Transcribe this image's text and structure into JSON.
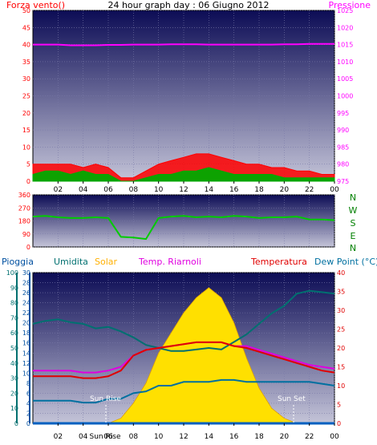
{
  "colors": {
    "wind": "#ff0000",
    "gust": "#00aa00",
    "pressure": "#ff00ff",
    "direction": "#00cc00",
    "rain": "#0060c0",
    "humidity": "#007070",
    "solar": "#ffe000",
    "heat_index": "#e000e0",
    "temperature": "#e00000",
    "dew_point": "#0070a0"
  },
  "header": {
    "title": "24 hour graph day : 06 Giugno 2012",
    "left_label": "Forza vento()",
    "right_label": "Pressione"
  },
  "bottom_header": {
    "rain": "Pioggia",
    "humidity": "Umidita",
    "solar": "Solar",
    "heat_index": "Temp. Riarnoli",
    "temperature": "Temperatura",
    "dew_point": "Dew Point (°C)"
  },
  "direction_labels": [
    "N",
    "W",
    "S",
    "E",
    "N"
  ],
  "annotations": {
    "sun_rise": "Sun Rise",
    "sun_set": "Sun Set",
    "sun_rise_axis": "Sun Rise"
  },
  "chart_data": [
    {
      "type": "line",
      "title": "24 hour graph day : 06 Giugno 2012",
      "x_ticks": [
        "02",
        "04",
        "06",
        "08",
        "10",
        "12",
        "14",
        "16",
        "18",
        "20",
        "22",
        "00"
      ],
      "y_left": {
        "label": "Forza vento()",
        "range": [
          0,
          50
        ],
        "ticks": [
          "0",
          "5",
          "10",
          "15",
          "20",
          "25",
          "30",
          "35",
          "40",
          "45",
          "50"
        ]
      },
      "y_right": {
        "label": "Pressione",
        "range": [
          975,
          1025
        ],
        "ticks": [
          "975",
          "980",
          "985",
          "990",
          "995",
          "1000",
          "1005",
          "1010",
          "1015",
          "1020",
          "1025"
        ]
      },
      "hours": [
        0,
        1,
        2,
        3,
        4,
        5,
        6,
        7,
        8,
        9,
        10,
        11,
        12,
        13,
        14,
        15,
        16,
        17,
        18,
        19,
        20,
        21,
        22,
        23,
        24
      ],
      "series": [
        {
          "key": "wind",
          "axis": "left",
          "values": [
            5,
            5,
            5,
            5,
            4,
            5,
            4,
            1,
            1,
            3,
            5,
            6,
            7,
            8,
            8,
            7,
            6,
            5,
            5,
            4,
            4,
            3,
            3,
            2,
            2
          ]
        },
        {
          "key": "gust",
          "axis": "left",
          "values": [
            2,
            3,
            3,
            2,
            3,
            2,
            2,
            0,
            0,
            1,
            2,
            2,
            3,
            3,
            4,
            3,
            2,
            2,
            2,
            2,
            1,
            1,
            1,
            1,
            1
          ]
        },
        {
          "key": "pressure",
          "axis": "right",
          "values": [
            1015,
            1015,
            1015,
            1014.8,
            1014.8,
            1014.8,
            1014.9,
            1014.9,
            1015,
            1015,
            1015,
            1015.1,
            1015.1,
            1015.1,
            1015,
            1015,
            1015,
            1015,
            1015,
            1015,
            1015.1,
            1015.1,
            1015.2,
            1015.2,
            1015.2
          ]
        }
      ],
      "grid": true
    },
    {
      "type": "line",
      "x_ticks": [
        "02",
        "04",
        "06",
        "08",
        "10",
        "12",
        "14",
        "16",
        "18",
        "20",
        "22",
        "00"
      ],
      "y": {
        "range": [
          0,
          360
        ],
        "ticks": [
          "0",
          "90",
          "180",
          "270",
          "360"
        ]
      },
      "hours": [
        0,
        1,
        2,
        3,
        4,
        5,
        6,
        7,
        8,
        9,
        10,
        11,
        12,
        13,
        14,
        15,
        16,
        17,
        18,
        19,
        20,
        21,
        22,
        23,
        24
      ],
      "series": [
        {
          "key": "direction",
          "values": [
            210,
            215,
            205,
            200,
            200,
            205,
            200,
            70,
            65,
            55,
            200,
            210,
            215,
            205,
            210,
            205,
            215,
            210,
            200,
            205,
            205,
            210,
            190,
            190,
            185
          ]
        }
      ],
      "grid": true
    },
    {
      "type": "area",
      "x_ticks": [
        "02",
        "04",
        "06",
        "08",
        "10",
        "12",
        "14",
        "16",
        "18",
        "20",
        "22",
        "00"
      ],
      "y_rain": {
        "label": "Pioggia",
        "range": [
          0,
          30
        ],
        "ticks": [
          "0",
          "2",
          "4",
          "6",
          "8",
          "10",
          "12",
          "14",
          "16",
          "18",
          "20",
          "22",
          "24",
          "26",
          "28",
          "30"
        ]
      },
      "y_humidity": {
        "label": "Umidita",
        "range": [
          0,
          100
        ],
        "ticks": [
          "0",
          "10",
          "20",
          "30",
          "40",
          "50",
          "60",
          "70",
          "80",
          "90",
          "100"
        ]
      },
      "y_temp": {
        "label": "Temperatura",
        "range": [
          0,
          40
        ],
        "ticks": [
          "0",
          "5",
          "10",
          "15",
          "20",
          "25",
          "30",
          "35",
          "40"
        ]
      },
      "hours": [
        0,
        1,
        2,
        3,
        4,
        5,
        6,
        7,
        8,
        9,
        10,
        11,
        12,
        13,
        14,
        15,
        16,
        17,
        18,
        19,
        20,
        21,
        22,
        23,
        24
      ],
      "series": [
        {
          "key": "solar",
          "axis": "rain",
          "values": [
            0,
            0,
            0,
            0,
            0,
            0,
            0,
            1,
            4,
            8,
            14,
            18,
            22,
            25,
            27,
            25,
            20,
            13,
            7,
            3,
            1,
            0,
            0,
            0,
            0
          ]
        },
        {
          "key": "humidity",
          "axis": "humidity",
          "values": [
            66,
            68,
            69,
            67,
            66,
            63,
            64,
            61,
            57,
            52,
            50,
            48,
            48,
            49,
            50,
            49,
            54,
            59,
            66,
            73,
            78,
            86,
            88,
            87,
            86
          ]
        },
        {
          "key": "heat_index",
          "axis": "temp",
          "values": [
            14,
            14,
            14,
            14,
            13.5,
            13.5,
            14,
            15,
            18,
            19.5,
            20,
            20.5,
            21,
            21.5,
            21.5,
            21.5,
            20.5,
            20.5,
            19.5,
            18.5,
            17.5,
            16.5,
            15.5,
            15,
            14.5
          ]
        },
        {
          "key": "temperature",
          "axis": "temp",
          "values": [
            12.5,
            12.5,
            12.5,
            12.5,
            12,
            12,
            12.5,
            14,
            18,
            19.5,
            20,
            20.5,
            21,
            21.5,
            21.5,
            21.5,
            20.5,
            20,
            19,
            18,
            17,
            16,
            15,
            14,
            13.5
          ]
        },
        {
          "key": "dew_point",
          "axis": "temp",
          "values": [
            6,
            6,
            6,
            6,
            5.5,
            5.5,
            6.5,
            6.5,
            8,
            8.5,
            10,
            10,
            11,
            11,
            11,
            11.5,
            11.5,
            11,
            11,
            11,
            11,
            11,
            11,
            10.5,
            10
          ]
        },
        {
          "key": "rain",
          "axis": "rain",
          "values": [
            0,
            0,
            0,
            0,
            0,
            0,
            0,
            0,
            0,
            0,
            0,
            0,
            0,
            0,
            0,
            0,
            0,
            0,
            0,
            0,
            0,
            0,
            0,
            0,
            0
          ]
        }
      ],
      "grid": true
    }
  ]
}
